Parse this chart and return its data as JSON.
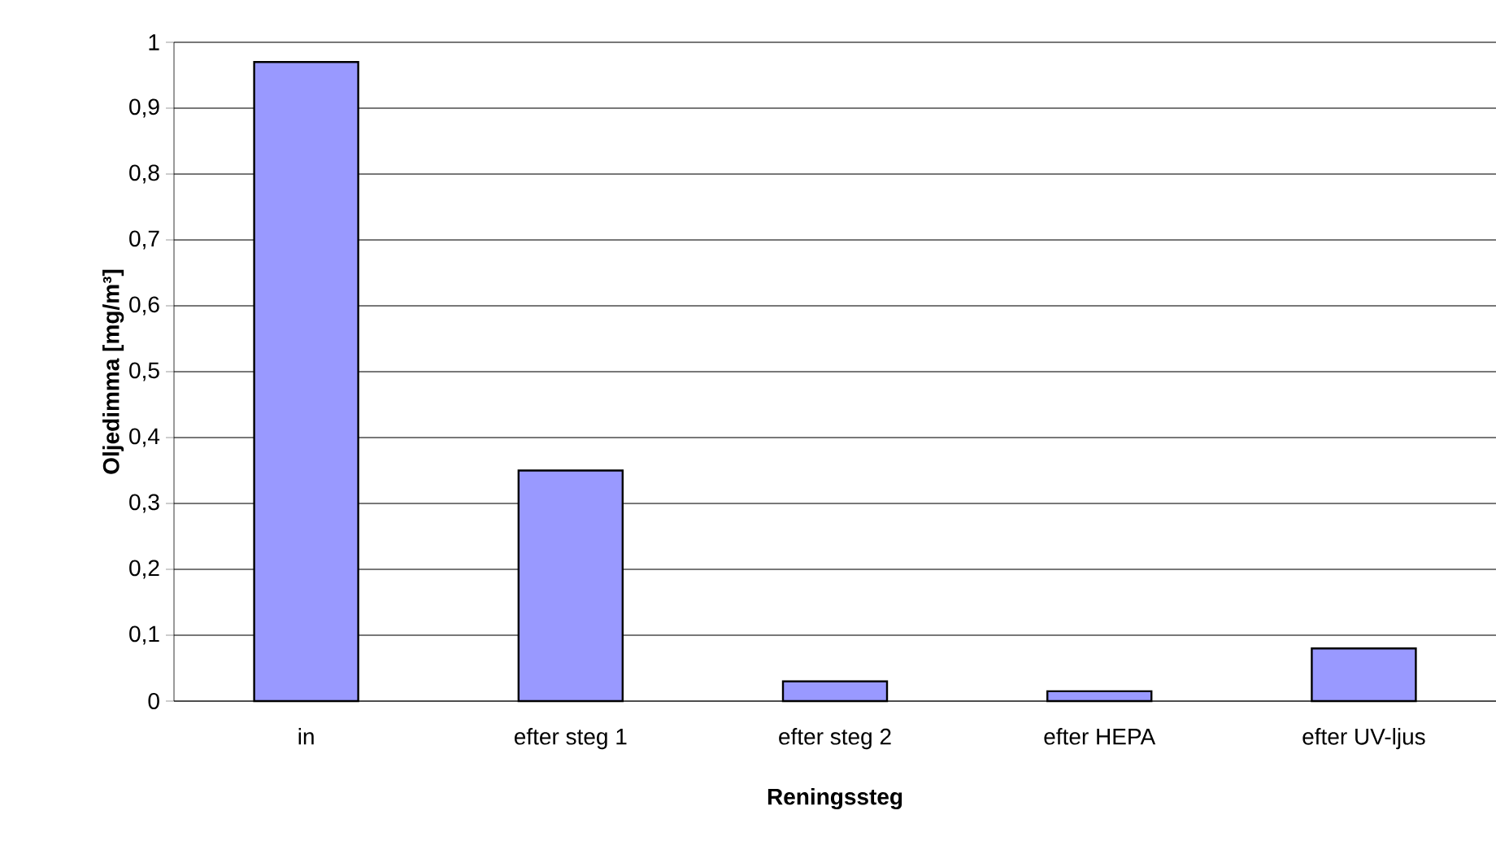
{
  "chart_data": {
    "type": "bar",
    "xlabel": "Reningssteg",
    "ylabel": "Oljedimma [mg/m³]",
    "categories": [
      "in",
      "efter steg 1",
      "efter steg 2",
      "efter HEPA",
      "efter UV-ljus"
    ],
    "values": [
      0.97,
      0.35,
      0.03,
      0.015,
      0.08
    ],
    "color": "#9999ff",
    "ylim": [
      0,
      1
    ],
    "yticks": [
      0,
      {
        "value": 0.1,
        "label": "0,1"
      },
      {
        "value": 0.2,
        "label": "0,2"
      },
      {
        "value": 0.3,
        "label": "0,3"
      },
      {
        "value": 0.4,
        "label": "0,4"
      },
      {
        "value": 0.5,
        "label": "0,5"
      },
      {
        "value": 0.6,
        "label": "0,6"
      },
      {
        "value": 0.7,
        "label": "0,7"
      },
      {
        "value": 0.8,
        "label": "0,8"
      },
      {
        "value": 0.9,
        "label": "0,9"
      },
      1
    ],
    "grid": "y"
  }
}
